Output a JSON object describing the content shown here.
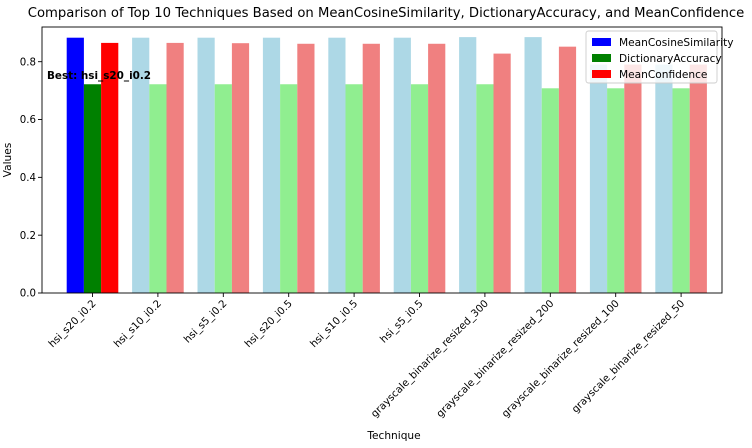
{
  "chart_data": {
    "type": "bar",
    "title": "Comparison of Top 10 Techniques Based on MeanCosineSimilarity, DictionaryAccuracy, and MeanConfidence",
    "xlabel": "Technique",
    "ylabel": "Values",
    "ylim": [
      0,
      0.92
    ],
    "yticks": [
      "0.0",
      "0.2",
      "0.4",
      "0.6",
      "0.8"
    ],
    "grid": false,
    "legend_position": "top-right",
    "categories": [
      "hsi_s20_i0.2",
      "hsi_s10_i0.2",
      "hsi_s5_i0.2",
      "hsi_s20_i0.5",
      "hsi_s10_i0.5",
      "hsi_s5_i0.5",
      "grayscale_binarize_resized_300",
      "grayscale_binarize_resized_200",
      "grayscale_binarize_resized_100",
      "grayscale_binarize_resized_50"
    ],
    "series": [
      {
        "name": "MeanCosineSimilarity",
        "color": "#add8e6",
        "highlight_color": "#0000ff",
        "values": [
          0.883,
          0.883,
          0.883,
          0.883,
          0.883,
          0.883,
          0.885,
          0.885,
          0.79,
          0.79
        ]
      },
      {
        "name": "DictionaryAccuracy",
        "color": "#90ee90",
        "highlight_color": "#008000",
        "values": [
          0.722,
          0.722,
          0.722,
          0.722,
          0.722,
          0.722,
          0.722,
          0.708,
          0.708,
          0.708
        ]
      },
      {
        "name": "MeanConfidence",
        "color": "#f08080",
        "highlight_color": "#ff0000",
        "values": [
          0.865,
          0.865,
          0.864,
          0.862,
          0.862,
          0.862,
          0.828,
          0.852,
          0.79,
          0.79
        ]
      }
    ],
    "highlight_index": 0,
    "annotation": "Best: hsi_s20_i0.2"
  }
}
